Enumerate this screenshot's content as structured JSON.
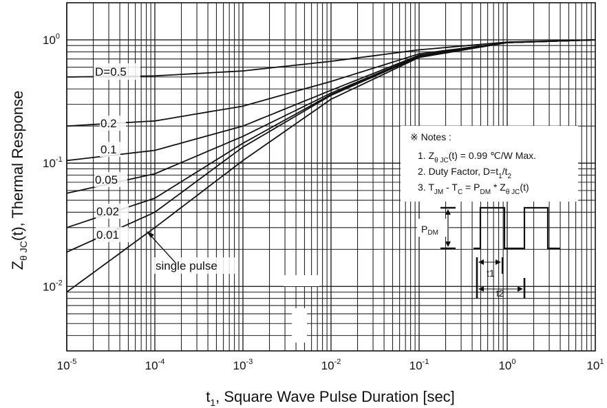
{
  "chart_data": {
    "type": "line",
    "x_scale": "log",
    "y_scale": "log",
    "xlim": [
      1e-05,
      10
    ],
    "ylim": [
      0.003,
      2
    ],
    "grid": true,
    "x_ticks": [
      {
        "mant": "10",
        "exp": "-5"
      },
      {
        "mant": "10",
        "exp": "-4"
      },
      {
        "mant": "10",
        "exp": "-3"
      },
      {
        "mant": "10",
        "exp": "-2"
      },
      {
        "mant": "10",
        "exp": "-1"
      },
      {
        "mant": "10",
        "exp": "0"
      },
      {
        "mant": "10",
        "exp": "1"
      }
    ],
    "y_ticks": [
      {
        "mant": "10",
        "exp": "0"
      },
      {
        "mant": "10",
        "exp": "-1"
      },
      {
        "mant": "10",
        "exp": "-2"
      }
    ],
    "xlabel": {
      "pre": "t",
      "sub": "1",
      "post": ", Square Wave Pulse Duration [sec]"
    },
    "ylabel": {
      "pre": "Z",
      "sub": "θ JC",
      "post": "(t),  Thermal Response"
    },
    "series": [
      {
        "name": "D=0.5",
        "x": [
          1e-05,
          0.0001,
          0.001,
          0.01,
          0.1,
          1,
          10
        ],
        "y": [
          0.5,
          0.51,
          0.56,
          0.67,
          0.83,
          0.96,
          1.0
        ]
      },
      {
        "name": "0.2",
        "x": [
          1e-05,
          0.0001,
          0.001,
          0.01,
          0.1,
          1,
          10
        ],
        "y": [
          0.2,
          0.22,
          0.29,
          0.46,
          0.77,
          0.95,
          1.0
        ]
      },
      {
        "name": "0.1",
        "x": [
          1e-05,
          0.0001,
          0.001,
          0.01,
          0.1,
          1,
          10
        ],
        "y": [
          0.105,
          0.127,
          0.2,
          0.39,
          0.75,
          0.95,
          1.0
        ]
      },
      {
        "name": "0.05",
        "x": [
          1e-05,
          0.0001,
          0.001,
          0.01,
          0.1,
          1,
          10
        ],
        "y": [
          0.057,
          0.082,
          0.165,
          0.37,
          0.74,
          0.95,
          1.0
        ]
      },
      {
        "name": "0.02",
        "x": [
          1e-05,
          0.0001,
          0.001,
          0.01,
          0.1,
          1,
          10
        ],
        "y": [
          0.03,
          0.052,
          0.145,
          0.36,
          0.74,
          0.95,
          1.0
        ]
      },
      {
        "name": "0.01",
        "x": [
          1e-05,
          0.0001,
          0.001,
          0.01,
          0.1,
          1,
          10
        ],
        "y": [
          0.019,
          0.04,
          0.135,
          0.355,
          0.73,
          0.95,
          1.0
        ]
      },
      {
        "name": "single pulse",
        "x": [
          1e-05,
          0.0001,
          0.001,
          0.01,
          0.1,
          1,
          10
        ],
        "y": [
          0.009,
          0.03,
          0.105,
          0.33,
          0.72,
          0.95,
          1.0
        ]
      }
    ],
    "annotations": {
      "notes_header": "※ Notes :",
      "note1": {
        "pre": "1. Z",
        "sub": "θ JC",
        "post": "(t) = 0.99 ℃/W Max."
      },
      "note2": {
        "pre": "2. Duty Factor, D=t",
        "sub1": "1",
        "mid": "/t",
        "sub2": "2"
      },
      "note3": {
        "p1": "3. T",
        "s1": "JM",
        "p2": " - T",
        "s2": "C",
        "p3": " = P",
        "s3": "DM",
        "p4": " * Z",
        "s4": "θ JC",
        "p5": "(t)"
      },
      "pdm": {
        "pre": "P",
        "sub": "DM"
      },
      "t1": "t1",
      "t2": "t2"
    }
  }
}
